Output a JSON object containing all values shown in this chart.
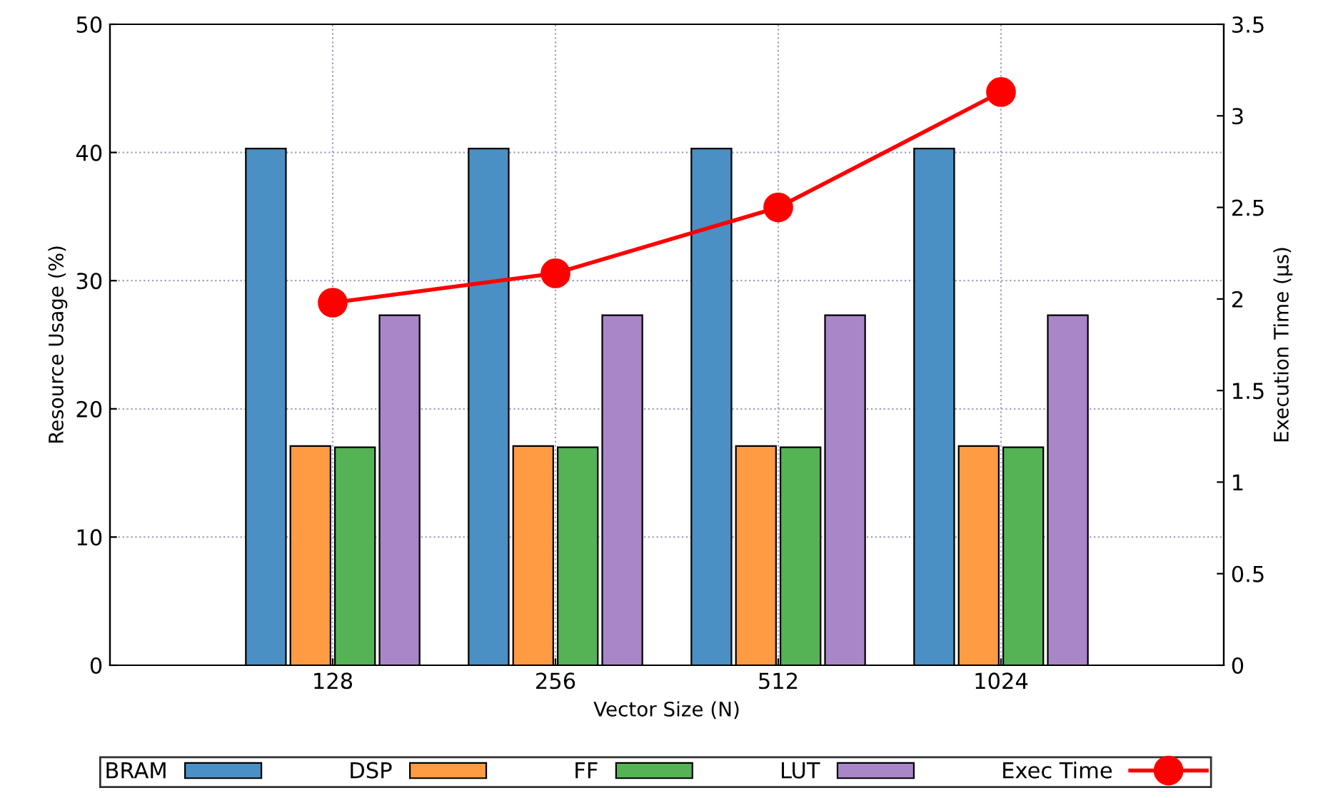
{
  "chart_data": {
    "type": "bar",
    "xlabel": "Vector Size (N)",
    "ylabel": "Resource Usage (%)",
    "y2label": "Execution Time (μs)",
    "categories": [
      "128",
      "256",
      "512",
      "1024"
    ],
    "series": [
      {
        "name": "BRAM",
        "color": "#4a90c4",
        "values": [
          40.3,
          40.3,
          40.3,
          40.3
        ]
      },
      {
        "name": "DSP",
        "color": "#ff9b42",
        "values": [
          17.1,
          17.1,
          17.1,
          17.1
        ]
      },
      {
        "name": "FF",
        "color": "#55b355",
        "values": [
          17.0,
          17.0,
          17.0,
          17.0
        ]
      },
      {
        "name": "LUT",
        "color": "#a886c8",
        "values": [
          27.3,
          27.3,
          27.3,
          27.3
        ]
      },
      {
        "name": "Exec Time",
        "type": "line",
        "axis": "y2",
        "color": "#ff0000",
        "marker": "circle",
        "line_style": "solid",
        "values": [
          1.98,
          2.14,
          2.5,
          3.13
        ]
      }
    ],
    "ylim": [
      0,
      50
    ],
    "yticks": [
      0,
      10,
      20,
      30,
      40,
      50
    ],
    "y2lim": [
      0,
      3.5
    ],
    "y2ticks": [
      0,
      0.5,
      1,
      1.5,
      2,
      2.5,
      3,
      3.5
    ],
    "grid": true,
    "legend": "bottom"
  }
}
